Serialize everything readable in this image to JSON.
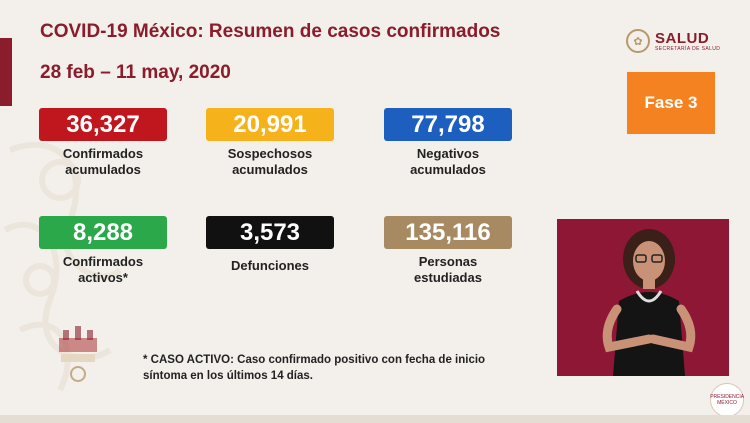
{
  "header": {
    "title": "COVID-19 México: Resumen de casos confirmados",
    "date_range": "28 feb – 11 may, 2020"
  },
  "logo": {
    "name": "SALUD",
    "subtitle": "SECRETARÍA DE SALUD"
  },
  "phase_badge": {
    "label": "Fase 3",
    "color": "#f58220"
  },
  "stats": [
    {
      "value": "36,327",
      "label_line1": "Confirmados",
      "label_line2": "acumulados",
      "color": "#c0171f",
      "text_color": "#ffffff"
    },
    {
      "value": "20,991",
      "label_line1": "Sospechosos",
      "label_line2": "acumulados",
      "color": "#f6b21a",
      "text_color": "#ffffff"
    },
    {
      "value": "77,798",
      "label_line1": "Negativos",
      "label_line2": "acumulados",
      "color": "#1c5fbf",
      "text_color": "#ffffff"
    },
    {
      "value": "8,288",
      "label_line1": "Confirmados",
      "label_line2": "activos*",
      "color": "#2ba84a",
      "text_color": "#ffffff"
    },
    {
      "value": "3,573",
      "label_line1": "Defunciones",
      "label_line2": "",
      "color": "#111111",
      "text_color": "#ffffff"
    },
    {
      "value": "135,116",
      "label_line1": "Personas",
      "label_line2": "estudiadas",
      "color": "#a78a62",
      "text_color": "#ffffff"
    }
  ],
  "footnote": {
    "line1": "* CASO ACTIVO: Caso confirmado positivo con fecha de inicio",
    "line2": "síntoma en los últimos 14 días."
  },
  "bottom_emblem_text": "PRESIDENCIA MÉXICO"
}
